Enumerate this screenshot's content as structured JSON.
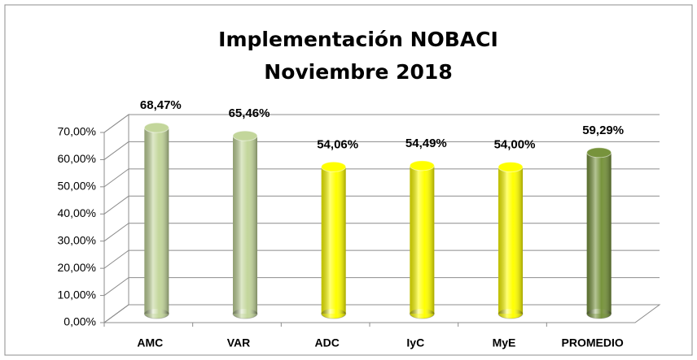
{
  "chart_data": {
    "type": "bar",
    "title": [
      "Implementación NOBACI",
      "Noviembre 2018"
    ],
    "categories": [
      "AMC",
      "VAR",
      "ADC",
      "IyC",
      "MyE",
      "PROMEDIO"
    ],
    "values": [
      68.47,
      65.46,
      54.06,
      54.49,
      54.0,
      59.29
    ],
    "value_labels": [
      "68,47%",
      "65,46%",
      "54,06%",
      "54,49%",
      "54,00%",
      "59,29%"
    ],
    "colors": [
      "#c3d69b",
      "#c3d69b",
      "#ffff00",
      "#ffff00",
      "#ffff00",
      "#77933c"
    ],
    "ylim": [
      0,
      70
    ],
    "yticks": [
      {
        "value": 0,
        "label": "0,00%"
      },
      {
        "value": 10,
        "label": "10,00%"
      },
      {
        "value": 20,
        "label": "20,00%"
      },
      {
        "value": 30,
        "label": "30,00%"
      },
      {
        "value": 40,
        "label": "40,00%"
      },
      {
        "value": 50,
        "label": "50,00%"
      },
      {
        "value": 60,
        "label": "60,00%"
      },
      {
        "value": 70,
        "label": "70,00%"
      }
    ],
    "grid": true
  }
}
